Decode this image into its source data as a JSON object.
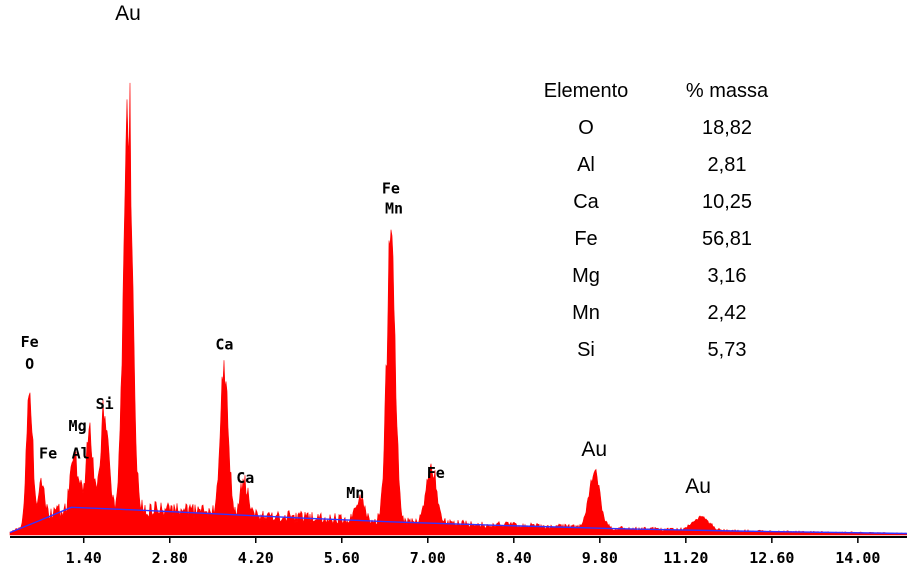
{
  "chart_data": {
    "type": "area",
    "xlim": [
      0.2,
      14.8
    ],
    "ylim": [
      0,
      100
    ],
    "x_ticks": [
      "1.40",
      "2.80",
      "4.20",
      "5.60",
      "7.00",
      "8.40",
      "9.80",
      "11.20",
      "12.60",
      "14.00"
    ],
    "x_tick_values": [
      1.4,
      2.8,
      4.2,
      5.6,
      7.0,
      8.4,
      9.8,
      11.2,
      12.6,
      14.0
    ],
    "colors": {
      "spectrum": "#ff0000",
      "background_line": "#3333ff",
      "axis": "#000000"
    },
    "spectrum_peaks": [
      {
        "x": 0.52,
        "height": 30.5,
        "width": 0.05
      },
      {
        "x": 0.71,
        "height": 9.0,
        "width": 0.05
      },
      {
        "x": 1.25,
        "height": 12.0,
        "width": 0.06
      },
      {
        "x": 1.49,
        "height": 16.0,
        "width": 0.06
      },
      {
        "x": 1.74,
        "height": 23.0,
        "width": 0.06
      },
      {
        "x": 2.12,
        "height": 97.0,
        "width": 0.07
      },
      {
        "x": 3.69,
        "height": 34.5,
        "width": 0.06
      },
      {
        "x": 4.01,
        "height": 8.0,
        "width": 0.06
      },
      {
        "x": 5.9,
        "height": 4.5,
        "width": 0.07
      },
      {
        "x": 6.4,
        "height": 62.0,
        "width": 0.07
      },
      {
        "x": 7.06,
        "height": 13.0,
        "width": 0.08
      },
      {
        "x": 9.71,
        "height": 12.5,
        "width": 0.09
      },
      {
        "x": 11.44,
        "height": 3.0,
        "width": 0.13
      }
    ],
    "background_curve": [
      {
        "x": 0.2,
        "y": 0.5
      },
      {
        "x": 0.6,
        "y": 2.5
      },
      {
        "x": 1.2,
        "y": 5.6
      },
      {
        "x": 2.0,
        "y": 5.2
      },
      {
        "x": 3.5,
        "y": 4.3
      },
      {
        "x": 5.0,
        "y": 3.4
      },
      {
        "x": 6.5,
        "y": 2.6
      },
      {
        "x": 8.0,
        "y": 2.0
      },
      {
        "x": 10.0,
        "y": 1.3
      },
      {
        "x": 12.0,
        "y": 0.8
      },
      {
        "x": 14.8,
        "y": 0.3
      }
    ],
    "peak_labels": [
      {
        "text": "Au",
        "x": 2.12,
        "y": 104,
        "style": "big"
      },
      {
        "text": "Fe",
        "x": 0.52,
        "y": 38.0,
        "style": "small"
      },
      {
        "text": "O",
        "x": 0.52,
        "y": 33.5,
        "style": "small"
      },
      {
        "text": "Fe",
        "x": 0.82,
        "y": 15.5,
        "style": "small"
      },
      {
        "text": "Mg",
        "x": 1.3,
        "y": 21.0,
        "style": "small"
      },
      {
        "text": "Al",
        "x": 1.35,
        "y": 15.5,
        "style": "small"
      },
      {
        "text": "Si",
        "x": 1.74,
        "y": 25.5,
        "style": "small"
      },
      {
        "text": "Ca",
        "x": 3.69,
        "y": 37.5,
        "style": "small"
      },
      {
        "text": "Ca",
        "x": 4.03,
        "y": 10.5,
        "style": "small"
      },
      {
        "text": "Fe",
        "x": 6.4,
        "y": 69.0,
        "style": "small"
      },
      {
        "text": "Mn",
        "x": 6.45,
        "y": 65.0,
        "style": "small"
      },
      {
        "text": "Mn",
        "x": 5.82,
        "y": 7.5,
        "style": "small"
      },
      {
        "text": "Fe",
        "x": 7.13,
        "y": 11.5,
        "style": "small"
      },
      {
        "text": "Au",
        "x": 9.71,
        "y": 16.0,
        "style": "big"
      },
      {
        "text": "Au",
        "x": 11.4,
        "y": 8.5,
        "style": "big"
      }
    ],
    "composition_table": {
      "headers": [
        "Elemento",
        "% massa"
      ],
      "rows": [
        {
          "element": "O",
          "value": "18,82"
        },
        {
          "element": "Al",
          "value": "2,81"
        },
        {
          "element": "Ca",
          "value": "10,25"
        },
        {
          "element": "Fe",
          "value": "56,81"
        },
        {
          "element": "Mg",
          "value": "3,16"
        },
        {
          "element": "Mn",
          "value": "2,42"
        },
        {
          "element": "Si",
          "value": "5,73"
        }
      ]
    }
  }
}
